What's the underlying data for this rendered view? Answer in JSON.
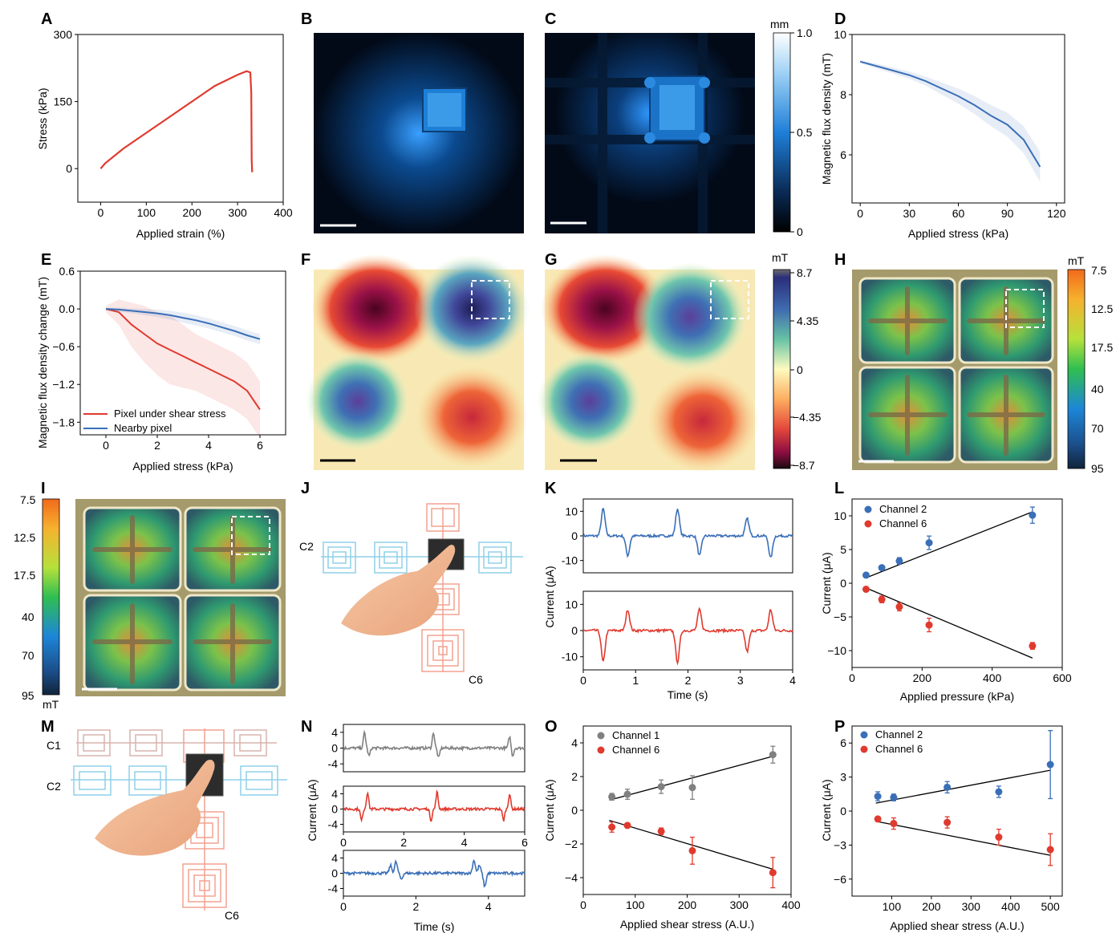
{
  "panels": [
    {
      "id": "A",
      "letter": "A"
    },
    {
      "id": "B",
      "letter": "B"
    },
    {
      "id": "C",
      "letter": "C"
    },
    {
      "id": "D",
      "letter": "D"
    },
    {
      "id": "E",
      "letter": "E"
    },
    {
      "id": "F",
      "letter": "F"
    },
    {
      "id": "G",
      "letter": "G"
    },
    {
      "id": "H",
      "letter": "H"
    },
    {
      "id": "I",
      "letter": "I"
    },
    {
      "id": "J",
      "letter": "J"
    },
    {
      "id": "K",
      "letter": "K"
    },
    {
      "id": "L",
      "letter": "L"
    },
    {
      "id": "M",
      "letter": "M"
    },
    {
      "id": "N",
      "letter": "N"
    },
    {
      "id": "O",
      "letter": "O"
    },
    {
      "id": "P",
      "letter": "P"
    }
  ],
  "colorbars": {
    "height_mm": {
      "unit": "mm",
      "ticks": [
        "1.0",
        "0.5",
        "0"
      ]
    },
    "field_mT": {
      "unit": "mT",
      "ticks": [
        "8.7",
        "4.35",
        "0",
        "−4.35",
        "−8.7"
      ]
    },
    "flux_H": {
      "unit": "mT",
      "ticks": [
        "7.5",
        "12.5",
        "17.5",
        "40",
        "70",
        "95"
      ]
    },
    "flux_I": {
      "unit": "mT",
      "ticks": [
        "7.5",
        "12.5",
        "17.5",
        "40",
        "70",
        "95"
      ]
    }
  },
  "schematics": {
    "J": {
      "labels": [
        "C2",
        "C6"
      ]
    },
    "M": {
      "labels": [
        "C1",
        "C2",
        "C6"
      ]
    }
  },
  "chart_data": [
    {
      "panel": "A",
      "type": "line",
      "xlabel": "Applied strain (%)",
      "ylabel": "Stress (kPa)",
      "xlim": [
        -50,
        400
      ],
      "ylim": [
        -75,
        300
      ],
      "xticks": [
        0,
        100,
        200,
        300,
        400
      ],
      "yticks": [
        0,
        150,
        300
      ],
      "series": [
        {
          "color": "#e03a2f",
          "x": [
            0,
            10,
            50,
            100,
            150,
            200,
            250,
            300,
            320,
            328,
            330,
            331,
            332
          ],
          "y": [
            0,
            12,
            45,
            80,
            115,
            150,
            185,
            210,
            218,
            215,
            170,
            20,
            -8
          ]
        }
      ]
    },
    {
      "panel": "D",
      "type": "line",
      "xlabel": "Applied stress (kPa)",
      "ylabel": "Magnetic flux density (mT)",
      "xlim": [
        -5,
        125
      ],
      "ylim": [
        4.4,
        10
      ],
      "xticks": [
        0,
        30,
        60,
        90,
        120
      ],
      "yticks": [
        6,
        8,
        10
      ],
      "series": [
        {
          "color": "#3a6fb8",
          "x": [
            0,
            10,
            20,
            30,
            40,
            50,
            60,
            70,
            80,
            90,
            100,
            110
          ],
          "y": [
            9.1,
            8.95,
            8.8,
            8.65,
            8.45,
            8.2,
            7.95,
            7.65,
            7.3,
            7.0,
            6.5,
            5.6
          ],
          "band": [
            0.05,
            0.08,
            0.1,
            0.12,
            0.15,
            0.2,
            0.25,
            0.3,
            0.35,
            0.4,
            0.45,
            0.5
          ]
        }
      ]
    },
    {
      "panel": "E",
      "type": "line",
      "xlabel": "Applied stress (kPa)",
      "ylabel": "Magnetic flux density change (mT)",
      "xlim": [
        -1,
        7
      ],
      "ylim": [
        -2.0,
        0.6
      ],
      "xticks": [
        0,
        2,
        4,
        6
      ],
      "yticks": [
        0.6,
        0.0,
        -0.6,
        -1.2,
        -1.8
      ],
      "ytick_labels": [
        "0.6",
        "0.0",
        "−0.6",
        "−1.2",
        "−1.8"
      ],
      "legend": [
        "Pixel under shear stress",
        "Nearby pixel"
      ],
      "series": [
        {
          "name": "Pixel under shear stress",
          "color": "#e03a2f",
          "x": [
            0,
            0.5,
            1,
            1.5,
            2,
            2.5,
            3,
            3.5,
            4,
            4.5,
            5,
            5.5,
            6
          ],
          "y": [
            0,
            -0.05,
            -0.25,
            -0.4,
            -0.55,
            -0.65,
            -0.75,
            -0.85,
            -0.95,
            -1.05,
            -1.15,
            -1.3,
            -1.6
          ],
          "band": [
            0.05,
            0.2,
            0.35,
            0.45,
            0.5,
            0.55,
            0.5,
            0.45,
            0.45,
            0.45,
            0.45,
            0.45,
            0.45
          ]
        },
        {
          "name": "Nearby pixel",
          "color": "#3a6fb8",
          "x": [
            0,
            0.5,
            1,
            1.5,
            2,
            2.5,
            3,
            3.5,
            4,
            4.5,
            5,
            5.5,
            6
          ],
          "y": [
            0,
            -0.01,
            -0.03,
            -0.05,
            -0.07,
            -0.1,
            -0.14,
            -0.18,
            -0.23,
            -0.29,
            -0.35,
            -0.42,
            -0.48
          ],
          "band": [
            0.02,
            0.03,
            0.04,
            0.05,
            0.06,
            0.07,
            0.08,
            0.08,
            0.08,
            0.08,
            0.08,
            0.08,
            0.08
          ]
        }
      ]
    },
    {
      "panel": "K",
      "type": "line",
      "xlabel": "Time (s)",
      "ylabel": "Current (μA)",
      "xlim": [
        0,
        4
      ],
      "xticks": [
        0,
        1,
        2,
        3,
        4
      ],
      "subplots": [
        {
          "color": "#3a6fb8",
          "ylim": [
            -15,
            15
          ],
          "yticks": [
            10,
            0,
            -10
          ],
          "peaks": [
            {
              "t": 0.38,
              "a": 11
            },
            {
              "t": 0.85,
              "a": -8
            },
            {
              "t": 1.8,
              "a": 11
            },
            {
              "t": 2.22,
              "a": -8
            },
            {
              "t": 3.13,
              "a": 7
            },
            {
              "t": 3.58,
              "a": -9
            }
          ]
        },
        {
          "color": "#e03a2f",
          "ylim": [
            -15,
            15
          ],
          "yticks": [
            10,
            0,
            -10
          ],
          "peaks": [
            {
              "t": 0.38,
              "a": -12
            },
            {
              "t": 0.85,
              "a": 8
            },
            {
              "t": 1.8,
              "a": -12
            },
            {
              "t": 2.22,
              "a": 8
            },
            {
              "t": 3.13,
              "a": -8
            },
            {
              "t": 3.58,
              "a": 8
            }
          ]
        }
      ]
    },
    {
      "panel": "L",
      "type": "scatter",
      "xlabel": "Applied pressure (kPa)",
      "ylabel": "Current (μA)",
      "xlim": [
        0,
        600
      ],
      "ylim": [
        -12.5,
        12.5
      ],
      "xticks": [
        0,
        200,
        400,
        600
      ],
      "yticks": [
        10,
        5,
        0,
        -5,
        -10
      ],
      "ytick_labels": [
        "10",
        "5",
        "0",
        "−5",
        "−10"
      ],
      "legend": [
        "Channel 2",
        "Channel 6"
      ],
      "series": [
        {
          "name": "Channel 2",
          "color": "#3a6fb8",
          "x": [
            40,
            85,
            135,
            220,
            515
          ],
          "y": [
            1.2,
            2.3,
            3.3,
            6.0,
            10.1
          ],
          "err": [
            0.2,
            0.3,
            0.5,
            1.0,
            1.2
          ],
          "fit": [
            [
              40,
              0.8
            ],
            [
              515,
              10.6
            ]
          ]
        },
        {
          "name": "Channel 6",
          "color": "#e03a2f",
          "x": [
            40,
            85,
            135,
            220,
            515
          ],
          "y": [
            -0.9,
            -2.4,
            -3.5,
            -6.2,
            -9.3
          ],
          "err": [
            0.3,
            0.5,
            0.6,
            1.0,
            0.5
          ],
          "fit": [
            [
              40,
              -0.7
            ],
            [
              515,
              -11.1
            ]
          ]
        }
      ]
    },
    {
      "panel": "N",
      "type": "line",
      "xlabel": "Time (s)",
      "ylabel": "Current (μA)",
      "subplots": [
        {
          "color": "#808080",
          "xlim": [
            0,
            6
          ],
          "ylim": [
            -6,
            6
          ],
          "yticks": [
            4,
            0,
            -4
          ],
          "peaks": [
            {
              "t": 0.7,
              "a": 4
            },
            {
              "t": 0.85,
              "a": -2
            },
            {
              "t": 2.98,
              "a": 4
            },
            {
              "t": 3.15,
              "a": -2.5
            },
            {
              "t": 5.5,
              "a": 3
            },
            {
              "t": 5.6,
              "a": -2
            }
          ]
        },
        {
          "color": "#e03a2f",
          "xlim": [
            0,
            6
          ],
          "ylim": [
            -6,
            6
          ],
          "yticks": [
            4,
            0,
            -4
          ],
          "xticks": [
            0,
            2,
            4,
            6
          ],
          "peaks": [
            {
              "t": 0.6,
              "a": -3
            },
            {
              "t": 0.8,
              "a": 4.5
            },
            {
              "t": 2.9,
              "a": -3
            },
            {
              "t": 3.1,
              "a": 4.5
            },
            {
              "t": 5.3,
              "a": -3
            },
            {
              "t": 5.5,
              "a": 4
            }
          ]
        },
        {
          "color": "#3a6fb8",
          "xlim": [
            0,
            5
          ],
          "ylim": [
            -6,
            6
          ],
          "yticks": [
            4,
            0,
            -4
          ],
          "xticks": [
            0,
            2,
            4
          ],
          "peaks": [
            {
              "t": 1.3,
              "a": 2
            },
            {
              "t": 1.45,
              "a": 3
            },
            {
              "t": 1.6,
              "a": -1.5
            },
            {
              "t": 3.6,
              "a": 3.5
            },
            {
              "t": 3.75,
              "a": 2
            },
            {
              "t": 3.9,
              "a": -3.5
            }
          ]
        }
      ]
    },
    {
      "panel": "O",
      "type": "scatter",
      "xlabel": "Applied shear stress (A.U.)",
      "ylabel": "Current (μA)",
      "xlim": [
        0,
        400
      ],
      "ylim": [
        -5,
        5
      ],
      "xticks": [
        0,
        100,
        200,
        300,
        400
      ],
      "yticks": [
        4,
        2,
        0,
        -2,
        -4
      ],
      "ytick_labels": [
        "4",
        "2",
        "0",
        "−2",
        "−4"
      ],
      "legend": [
        "Channel 1",
        "Channel 6"
      ],
      "series": [
        {
          "name": "Channel 1",
          "color": "#808080",
          "x": [
            55,
            85,
            150,
            210,
            365
          ],
          "y": [
            0.8,
            0.95,
            1.4,
            1.35,
            3.3
          ],
          "err": [
            0.2,
            0.3,
            0.4,
            0.7,
            0.5
          ],
          "fit": [
            [
              50,
              0.6
            ],
            [
              365,
              3.2
            ]
          ]
        },
        {
          "name": "Channel 6",
          "color": "#e03a2f",
          "x": [
            55,
            85,
            150,
            210,
            365
          ],
          "y": [
            -1.0,
            -0.9,
            -1.25,
            -2.4,
            -3.7
          ],
          "err": [
            0.3,
            0.1,
            0.2,
            0.8,
            0.9
          ],
          "fit": [
            [
              50,
              -0.6
            ],
            [
              365,
              -3.5
            ]
          ]
        }
      ]
    },
    {
      "panel": "P",
      "type": "scatter",
      "xlabel": "Applied shear stress (A.U.)",
      "ylabel": "Current (μA)",
      "xlim": [
        0,
        530
      ],
      "ylim": [
        -7.5,
        7.5
      ],
      "xticks": [
        100,
        200,
        300,
        400,
        500
      ],
      "yticks": [
        6,
        3,
        0,
        -3,
        -6
      ],
      "ytick_labels": [
        "6",
        "3",
        "0",
        "−3",
        "−6"
      ],
      "legend": [
        "Channel 2",
        "Channel 6"
      ],
      "series": [
        {
          "name": "Channel 2",
          "color": "#3a6fb8",
          "x": [
            65,
            105,
            240,
            370,
            500
          ],
          "y": [
            1.3,
            1.2,
            2.1,
            1.7,
            4.1
          ],
          "err": [
            0.4,
            0.3,
            0.5,
            0.5,
            3.0
          ],
          "fit": [
            [
              60,
              0.7
            ],
            [
              500,
              3.6
            ]
          ]
        },
        {
          "name": "Channel 6",
          "color": "#e03a2f",
          "x": [
            65,
            105,
            240,
            370,
            500
          ],
          "y": [
            -0.7,
            -1.1,
            -1.0,
            -2.3,
            -3.4
          ],
          "err": [
            0.2,
            0.5,
            0.5,
            0.7,
            1.4
          ],
          "fit": [
            [
              60,
              -0.9
            ],
            [
              500,
              -3.9
            ]
          ]
        }
      ]
    }
  ]
}
